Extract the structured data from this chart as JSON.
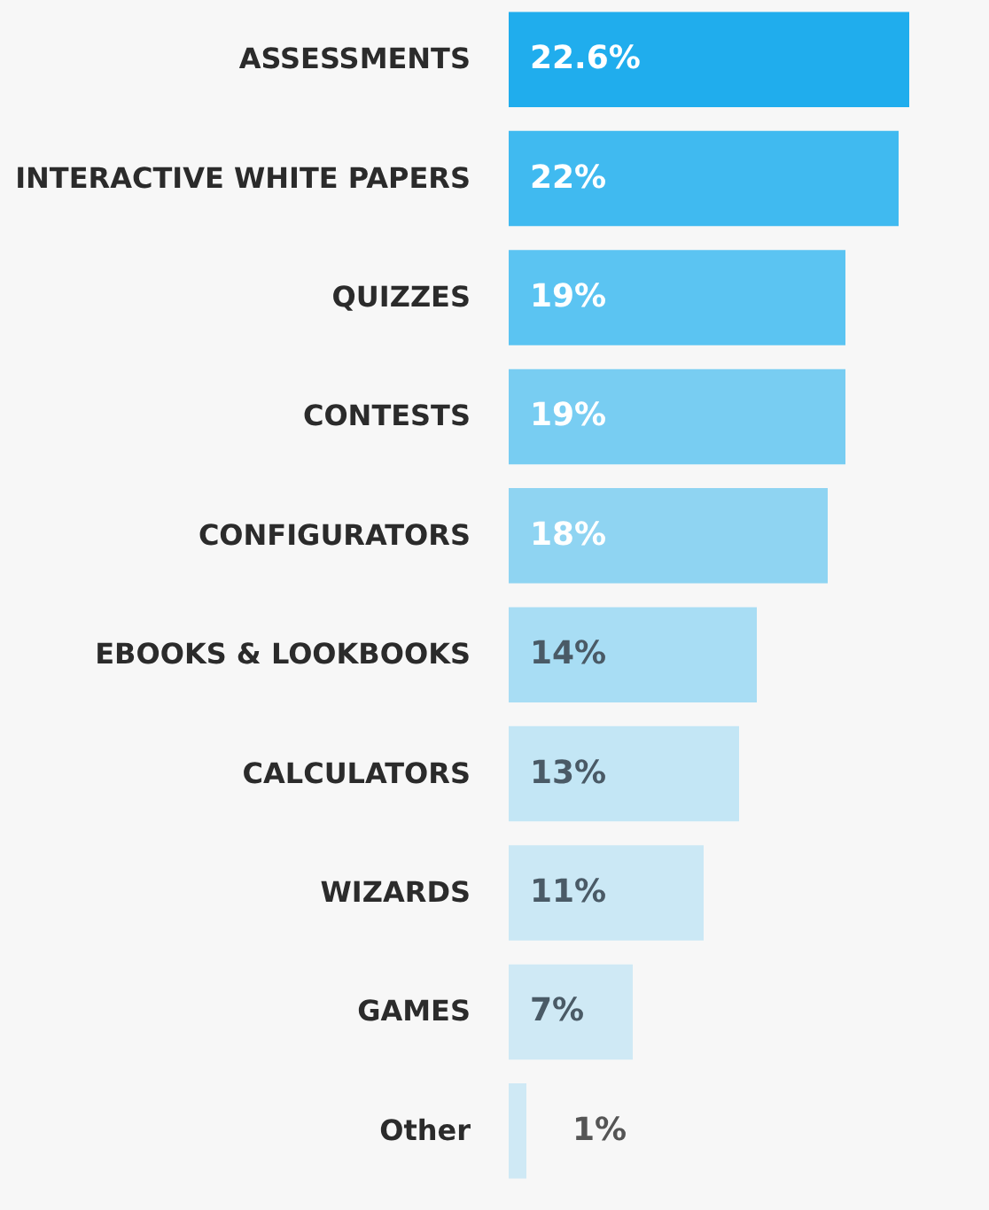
{
  "chart_data": {
    "type": "bar",
    "orientation": "horizontal",
    "categories": [
      "ASSESSMENTS",
      "INTERACTIVE WHITE PAPERS",
      "QUIZZES",
      "CONTESTS",
      "CONFIGURATORS",
      "EBOOKS & LOOKBOOKS",
      "CALCULATORS",
      "WIZARDS",
      "GAMES",
      "Other"
    ],
    "values": [
      22.6,
      22,
      19,
      19,
      18,
      14,
      13,
      11,
      7,
      1
    ],
    "value_labels": [
      "22.6%",
      "22%",
      "19%",
      "19%",
      "18%",
      "14%",
      "13%",
      "11%",
      "7%",
      "1%"
    ],
    "colors": [
      "#20aded",
      "#40baf0",
      "#5bc4f2",
      "#78cdf2",
      "#8fd4f2",
      "#a8ddf4",
      "#c3e6f5",
      "#cbe8f5",
      "#cfe9f5",
      "#cfe9f5"
    ]
  }
}
